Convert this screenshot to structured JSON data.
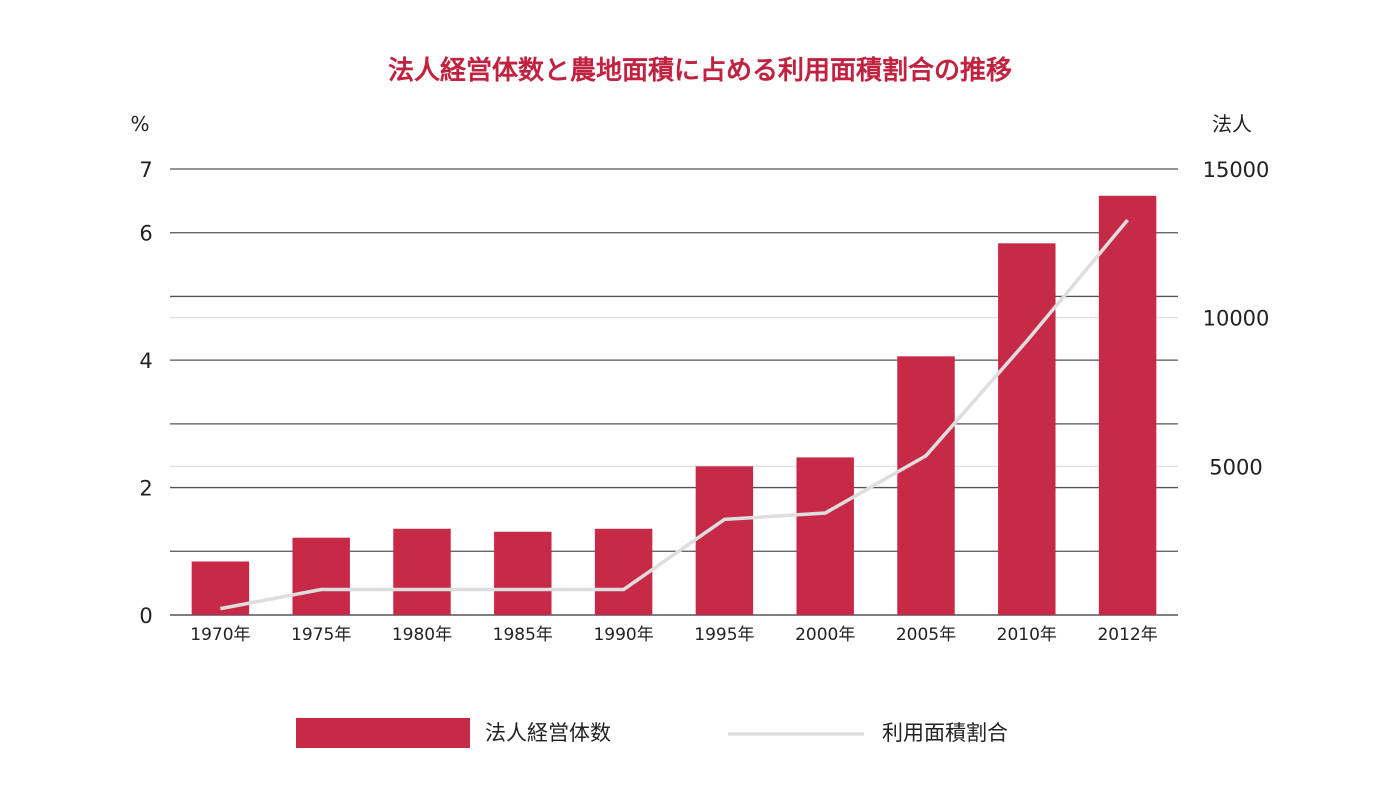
{
  "colors": {
    "bar": "#c72a46",
    "line": "#dedede",
    "title": "#c0223f",
    "grid_dark": "#555555",
    "grid_light": "#e2e2e2"
  },
  "chart_data": {
    "type": "bar",
    "title": "法人経営体数と農地面積に占める利用面積割合の推移",
    "categories": [
      "1970年",
      "1975年",
      "1980年",
      "1985年",
      "1990年",
      "1995年",
      "2000年",
      "2005年",
      "2010年",
      "2012年"
    ],
    "y_left": {
      "label": "%",
      "ylim": [
        0,
        7
      ],
      "ticks": [
        "0",
        "2",
        "4",
        "6",
        "7"
      ]
    },
    "y_right": {
      "label": "法人",
      "ylim": [
        0,
        15000
      ],
      "ticks": [
        "5000",
        "10000",
        "15000"
      ]
    },
    "series": [
      {
        "name": "法人経営体数",
        "type": "bar",
        "axis": "right",
        "values": [
          1800,
          2600,
          2900,
          2800,
          2900,
          5000,
          5300,
          8700,
          12500,
          14100
        ]
      },
      {
        "name": "利用面積割合",
        "type": "line",
        "axis": "left",
        "values": [
          0.1,
          0.4,
          0.4,
          0.4,
          0.4,
          1.5,
          1.6,
          2.5,
          4.3,
          6.2
        ]
      }
    ],
    "grid": true,
    "legend_position": "bottom"
  }
}
